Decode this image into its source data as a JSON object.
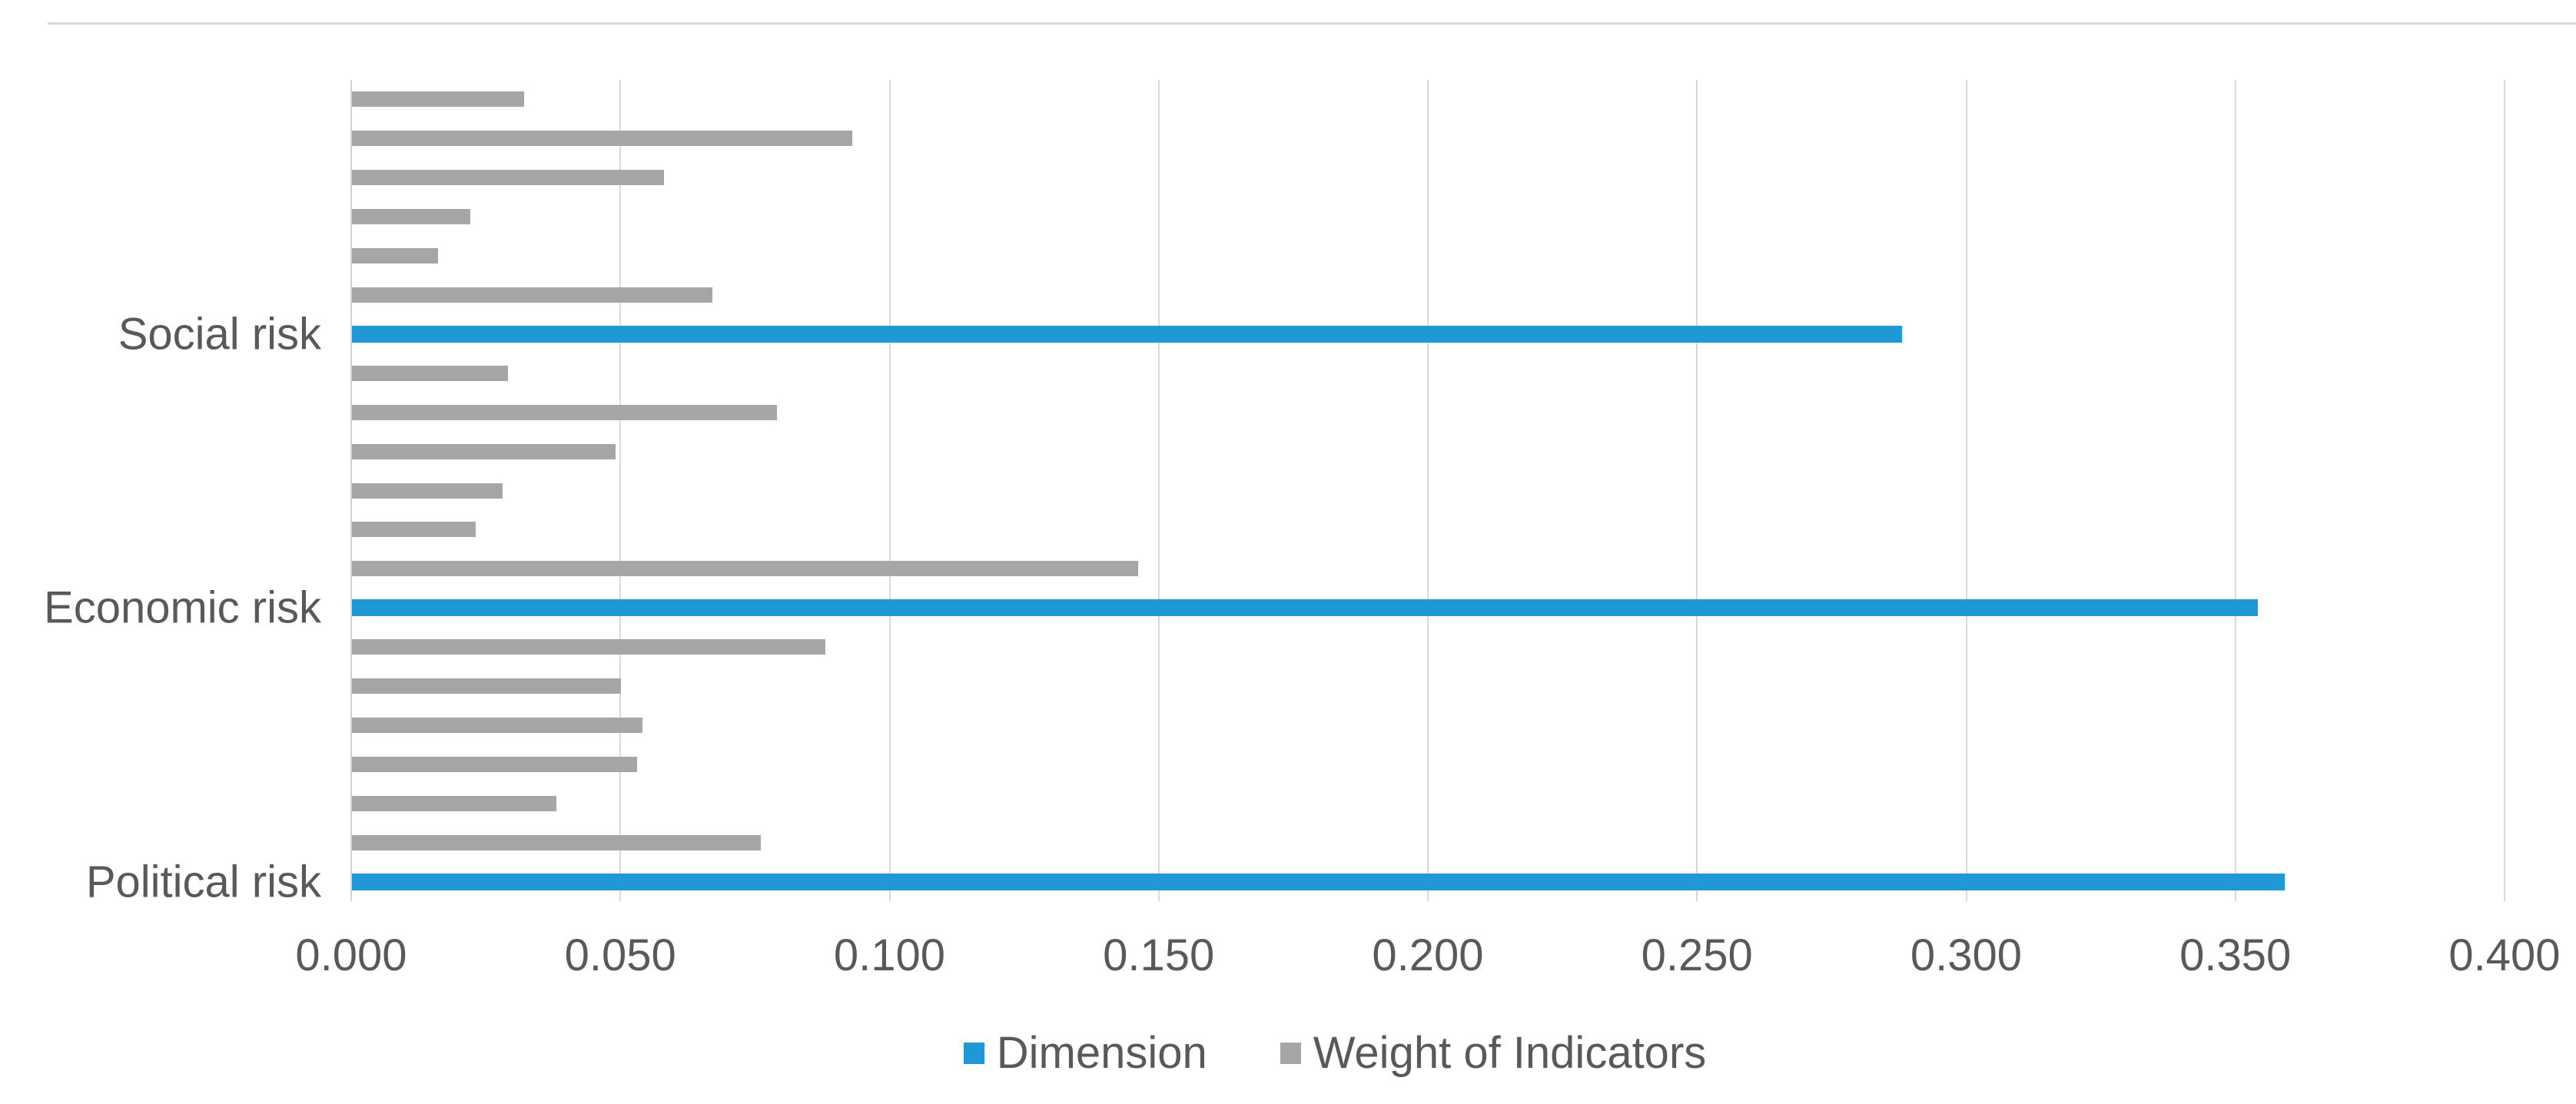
{
  "chart_data": {
    "type": "bar",
    "orientation": "horizontal",
    "title": "",
    "x_axis": {
      "tick_labels": [
        "0.000",
        "0.050",
        "0.100",
        "0.150",
        "0.200",
        "0.250",
        "0.300",
        "0.350",
        "0.400"
      ],
      "min": 0,
      "max": 0.4,
      "grid": true
    },
    "legend": {
      "position": "bottom",
      "items": [
        {
          "name": "Dimension",
          "color": "#2098d6"
        },
        {
          "name": "Weight of Indicators",
          "color": "#a6a6a6"
        }
      ]
    },
    "groups": [
      {
        "category": "Social risk",
        "dimension_value": 0.288,
        "indicator_values_top_to_bottom": [
          0.032,
          0.093,
          0.058,
          0.022,
          0.016,
          0.067
        ]
      },
      {
        "category": "Economic risk",
        "dimension_value": 0.354,
        "indicator_values_top_to_bottom": [
          0.029,
          0.079,
          0.049,
          0.028,
          0.023,
          0.146
        ]
      },
      {
        "category": "Political risk",
        "dimension_value": 0.359,
        "indicator_values_top_to_bottom": [
          0.088,
          0.05,
          0.054,
          0.053,
          0.038,
          0.076
        ]
      }
    ]
  }
}
